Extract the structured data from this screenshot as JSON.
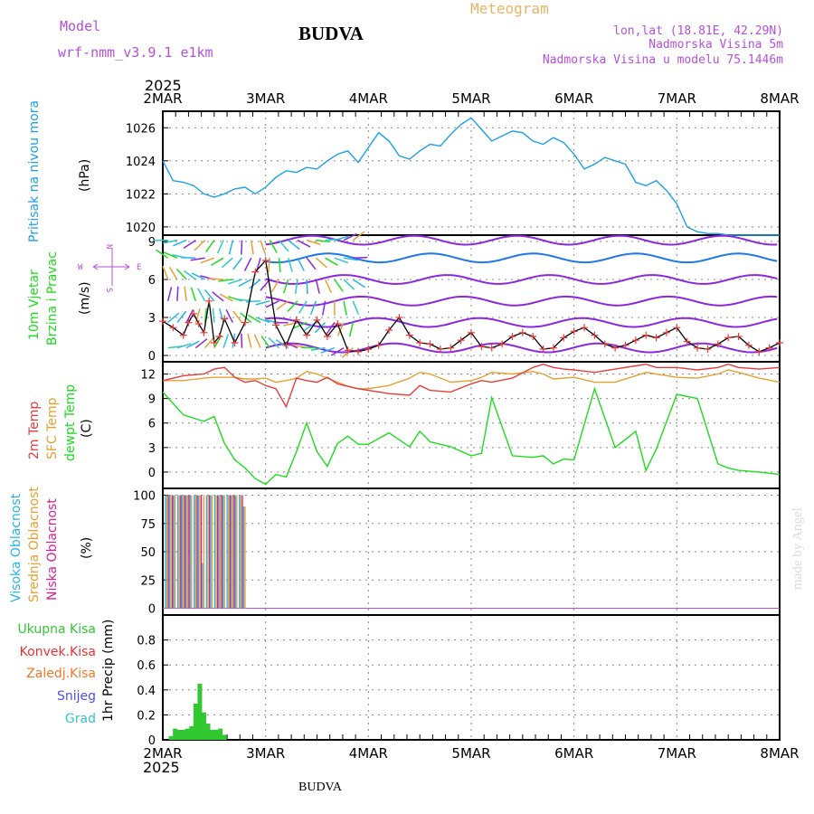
{
  "header": {
    "title": "BUDVA",
    "meteogram": "Meteogram",
    "model_label": "Model",
    "model_name": "wrf-nmm_v3.9.1 e1km",
    "coords": "lon,lat (18.81E, 42.29N)",
    "elevation": "Nadmorska Visina 5m",
    "model_elevation": "Nadmorska Visina u modelu 75.1446m",
    "footer_title": "BUDVA",
    "credit": "made by Angel"
  },
  "x_axis": {
    "year": "2025",
    "labels": [
      "2MAR",
      "3MAR",
      "4MAR",
      "5MAR",
      "6MAR",
      "7MAR",
      "8MAR"
    ]
  },
  "panels": {
    "pressure": {
      "ylabel": "Pritisak na nivou mora",
      "unit": "(hPa)",
      "ticks": [
        "1020",
        "1022",
        "1024",
        "1026"
      ]
    },
    "wind": {
      "ylabel_1": "10m Vjetar",
      "ylabel_2": "Brzina i Pravac",
      "unit": "(m/s)",
      "ticks": [
        "0",
        "3",
        "6",
        "9"
      ],
      "compass": {
        "n": "N",
        "s": "S",
        "w": "W",
        "e": "E"
      }
    },
    "temp": {
      "ylabel_1": "2m Temp",
      "ylabel_2": "SFC Temp",
      "ylabel_3": "dewpt Temp",
      "unit": "(C)",
      "ticks": [
        "0",
        "3",
        "6",
        "9",
        "12"
      ]
    },
    "cloud": {
      "ylabel_1": "Visoka Oblacnost",
      "ylabel_2": "Srednja Oblacnost",
      "ylabel_3": "Niska Oblacnost",
      "unit": "(%)",
      "ticks": [
        "0",
        "25",
        "50",
        "75",
        "100"
      ]
    },
    "precip": {
      "ylabel": "1hr Precip (mm)",
      "ticks": [
        "0",
        "0.2",
        "0.4",
        "0.6",
        "0.8"
      ],
      "legend": [
        "Ukupna Kisa",
        "Konvek.Kisa",
        "Zaledj.Kisa",
        "Snijeg",
        "Grad"
      ]
    }
  },
  "colors": {
    "pressure": "#1ea0e6",
    "t2m": "#e63c3c",
    "sfc": "#e6a032",
    "dewpt": "#1edc1e",
    "high_cloud": "#28b4e6",
    "mid_cloud": "#e6a032",
    "low_cloud": "#dc1e96",
    "rain": "#32c832",
    "conv": "#e63232",
    "frz": "#f07828",
    "snow": "#5050e6",
    "hail": "#32c8c8",
    "label_purple": "#b450dc",
    "label_orange": "#e6b464"
  },
  "chart_data": [
    {
      "type": "line",
      "title": "",
      "ylabel": "Pritisak na nivou mora (hPa)",
      "ylim": [
        1019.5,
        1027
      ],
      "x_days": [
        0,
        0.1,
        0.2,
        0.3,
        0.4,
        0.5,
        0.6,
        0.7,
        0.8,
        0.9,
        1.0,
        1.1,
        1.2,
        1.3,
        1.4,
        1.5,
        1.6,
        1.7,
        1.8,
        1.9,
        2.0,
        2.1,
        2.2,
        2.3,
        2.4,
        2.5,
        2.6,
        2.7,
        2.8,
        2.9,
        3.0,
        3.1,
        3.2,
        3.3,
        3.4,
        3.5,
        3.6,
        3.7,
        3.8,
        3.9,
        4.0,
        4.1,
        4.2,
        4.3,
        4.4,
        4.5,
        4.6,
        4.7,
        4.8,
        4.9,
        5.0,
        5.1,
        5.2,
        5.3,
        5.4,
        5.5,
        5.6,
        5.7,
        5.8,
        5.9,
        6.0
      ],
      "series": [
        {
          "name": "",
          "values": [
            1024.0,
            1022.8,
            1022.7,
            1022.5,
            1022.0,
            1021.8,
            1022.0,
            1022.3,
            1022.4,
            1022.0,
            1022.4,
            1023.0,
            1023.4,
            1023.3,
            1023.6,
            1023.5,
            1024.0,
            1024.4,
            1024.6,
            1023.9,
            1024.8,
            1025.7,
            1025.2,
            1024.3,
            1024.1,
            1024.6,
            1025.0,
            1024.9,
            1025.6,
            1026.2,
            1026.6,
            1025.9,
            1025.2,
            1025.5,
            1025.8,
            1025.7,
            1025.2,
            1025.0,
            1025.4,
            1025.1,
            1024.4,
            1023.5,
            1023.8,
            1024.2,
            1024.0,
            1023.8,
            1022.7,
            1022.5,
            1022.8,
            1022.2,
            1021.4,
            1020.0,
            1019.7,
            1019.6,
            1019.6,
            1019.5,
            1019.5,
            1019.5,
            1019.5,
            1019.5,
            1019.5
          ]
        }
      ]
    },
    {
      "type": "line",
      "title": "",
      "ylabel": "10m Vjetar Brzina i Pravac (m/s)",
      "ylim": [
        -0.5,
        9.5
      ],
      "x_days": [
        0,
        0.1,
        0.2,
        0.25,
        0.3,
        0.35,
        0.4,
        0.45,
        0.5,
        0.55,
        0.6,
        0.7,
        0.8,
        0.9,
        1.0,
        1.1,
        1.2,
        1.3,
        1.4,
        1.5,
        1.6,
        1.7,
        1.8,
        1.9,
        2.0,
        2.1,
        2.2,
        2.3,
        2.4,
        2.5,
        2.6,
        2.7,
        2.8,
        2.9,
        3.0,
        3.1,
        3.2,
        3.3,
        3.4,
        3.5,
        3.6,
        3.7,
        3.8,
        3.9,
        4.0,
        4.1,
        4.2,
        4.3,
        4.4,
        4.5,
        4.6,
        4.7,
        4.8,
        4.9,
        5.0,
        5.1,
        5.2,
        5.3,
        5.4,
        5.5,
        5.6,
        5.7,
        5.8,
        5.9,
        6.0
      ],
      "series": [
        {
          "name": "",
          "values": [
            2.7,
            2.2,
            1.6,
            2.6,
            3.3,
            2.5,
            1.8,
            4.3,
            1.0,
            1.5,
            2.9,
            1.0,
            2.6,
            6.6,
            7.5,
            2.4,
            0.8,
            2.8,
            1.6,
            2.8,
            1.5,
            2.5,
            0.4,
            0.3,
            0.5,
            0.8,
            2.0,
            3.0,
            1.6,
            1.0,
            0.9,
            0.5,
            0.6,
            1.2,
            1.8,
            0.7,
            0.6,
            0.9,
            1.5,
            1.8,
            1.5,
            0.5,
            0.6,
            1.4,
            1.9,
            2.2,
            1.6,
            0.9,
            0.6,
            0.8,
            1.2,
            1.6,
            1.4,
            1.8,
            2.2,
            1.1,
            0.6,
            0.5,
            0.9,
            1.4,
            1.5,
            0.8,
            0.3,
            0.6,
            1.0
          ]
        }
      ]
    },
    {
      "type": "line",
      "title": "",
      "ylabel": "Temp (C)",
      "ylim": [
        -2,
        13.5
      ],
      "x_days": [
        0,
        0.2,
        0.4,
        0.5,
        0.6,
        0.7,
        0.8,
        0.9,
        1.0,
        1.1,
        1.2,
        1.3,
        1.4,
        1.5,
        1.6,
        1.7,
        1.8,
        1.9,
        2.0,
        2.2,
        2.4,
        2.5,
        2.6,
        2.8,
        3.0,
        3.1,
        3.2,
        3.4,
        3.6,
        3.7,
        3.8,
        3.9,
        4.0,
        4.2,
        4.4,
        4.6,
        4.7,
        4.8,
        5.0,
        5.2,
        5.4,
        5.5,
        5.6,
        5.8,
        6.0
      ],
      "series": [
        {
          "name": "2m Temp",
          "values": [
            11.2,
            11.8,
            12.0,
            12.6,
            12.8,
            11.6,
            11.0,
            11.2,
            10.6,
            10.2,
            8.0,
            11.5,
            11.2,
            11.0,
            11.6,
            10.8,
            10.5,
            10.2,
            10.0,
            9.6,
            9.4,
            10.6,
            10.0,
            9.8,
            10.8,
            11.2,
            11.0,
            11.5,
            12.8,
            13.2,
            12.8,
            12.6,
            12.5,
            12.2,
            12.6,
            13.0,
            13.2,
            12.8,
            12.8,
            12.5,
            12.8,
            13.2,
            12.8,
            12.6,
            12.8
          ]
        },
        {
          "name": "SFC Temp",
          "values": [
            11.2,
            11.2,
            11.5,
            11.6,
            11.6,
            11.6,
            11.4,
            11.4,
            11.5,
            11.0,
            11.2,
            11.5,
            12.3,
            12.0,
            11.5,
            11.0,
            10.5,
            10.2,
            10.2,
            10.6,
            11.5,
            12.2,
            12.0,
            11.0,
            11.2,
            11.6,
            12.2,
            12.0,
            12.3,
            12.0,
            11.4,
            11.5,
            11.6,
            11.0,
            11.0,
            11.8,
            12.2,
            12.0,
            11.6,
            11.5,
            12.0,
            12.5,
            12.2,
            11.5,
            11.0
          ]
        },
        {
          "name": "dewpt Temp",
          "values": [
            9.8,
            7.0,
            6.2,
            6.8,
            3.5,
            1.5,
            0.5,
            -0.8,
            -1.5,
            -0.3,
            -0.6,
            2.5,
            6.0,
            2.5,
            0.7,
            3.5,
            4.4,
            3.4,
            3.4,
            4.8,
            3.1,
            5.0,
            3.7,
            3.1,
            2.0,
            2.3,
            9.1,
            2.0,
            1.8,
            2.0,
            1.0,
            1.6,
            1.5,
            10.2,
            3.0,
            5.0,
            0.2,
            2.8,
            9.5,
            9.0,
            1.0,
            0.5,
            0.2,
            0.0,
            -0.3
          ]
        }
      ]
    },
    {
      "type": "bar",
      "title": "",
      "ylabel": "Oblacnost (%)",
      "ylim": [
        0,
        100
      ],
      "x_days": [
        0.04,
        0.08,
        0.12,
        0.16,
        0.2,
        0.24,
        0.28,
        0.32,
        0.36,
        0.4,
        0.44,
        0.48,
        0.52,
        0.56,
        0.6,
        0.64,
        0.68,
        0.72,
        0.76,
        0.8
      ],
      "series": [
        {
          "name": "Visoka Oblacnost",
          "values": [
            100,
            100,
            100,
            100,
            100,
            100,
            100,
            100,
            100,
            40,
            100,
            100,
            100,
            100,
            100,
            100,
            100,
            100,
            100,
            90
          ]
        },
        {
          "name": "Srednja Oblacnost",
          "values": [
            100,
            100,
            100,
            100,
            100,
            100,
            100,
            100,
            100,
            100,
            100,
            100,
            100,
            100,
            100,
            100,
            100,
            100,
            100,
            90
          ]
        },
        {
          "name": "Niska Oblacnost",
          "values": [
            100,
            100,
            0,
            100,
            100,
            100,
            0,
            100,
            100,
            0,
            100,
            0,
            100,
            100,
            0,
            100,
            100,
            0,
            100,
            0
          ]
        }
      ]
    },
    {
      "type": "bar",
      "title": "",
      "ylabel": "1hr Precip (mm)",
      "ylim": [
        0,
        1.0
      ],
      "x_days": [
        0.08,
        0.12,
        0.16,
        0.2,
        0.24,
        0.28,
        0.32,
        0.36,
        0.4,
        0.44,
        0.48,
        0.52,
        0.56,
        0.6
      ],
      "series": [
        {
          "name": "Ukupna Kisa",
          "values": [
            0.03,
            0.09,
            0.08,
            0.08,
            0.09,
            0.11,
            0.29,
            0.45,
            0.22,
            0.13,
            0.08,
            0.08,
            0.09,
            0.04
          ]
        }
      ]
    }
  ]
}
